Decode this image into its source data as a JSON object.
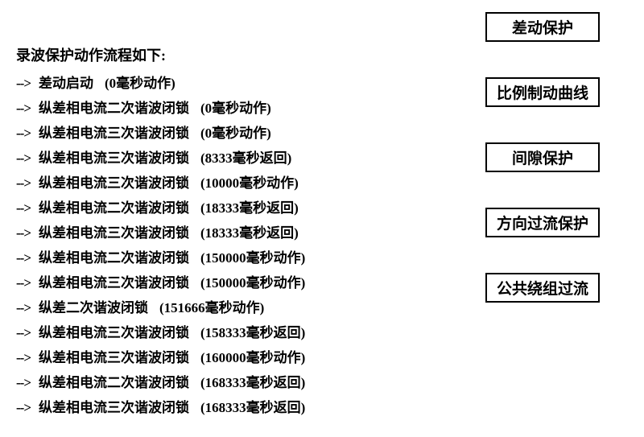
{
  "title": "录波保护动作流程如下:",
  "events": [
    {
      "name": "差动启动",
      "time": "(0毫秒动作)"
    },
    {
      "name": "纵差相电流二次谐波闭锁",
      "time": "(0毫秒动作)"
    },
    {
      "name": "纵差相电流三次谐波闭锁",
      "time": "(0毫秒动作)"
    },
    {
      "name": "纵差相电流三次谐波闭锁",
      "time": "(8333毫秒返回)"
    },
    {
      "name": "纵差相电流三次谐波闭锁",
      "time": "(10000毫秒动作)"
    },
    {
      "name": "纵差相电流二次谐波闭锁",
      "time": "(18333毫秒返回)"
    },
    {
      "name": "纵差相电流三次谐波闭锁",
      "time": "(18333毫秒返回)"
    },
    {
      "name": "纵差相电流二次谐波闭锁",
      "time": "(150000毫秒动作)"
    },
    {
      "name": "纵差相电流三次谐波闭锁",
      "time": "(150000毫秒动作)"
    },
    {
      "name": "纵差二次谐波闭锁",
      "time": "(151666毫秒动作)"
    },
    {
      "name": "纵差相电流三次谐波闭锁",
      "time": "(158333毫秒返回)"
    },
    {
      "name": "纵差相电流三次谐波闭锁",
      "time": "(160000毫秒动作)"
    },
    {
      "name": "纵差相电流二次谐波闭锁",
      "time": "(168333毫秒返回)"
    },
    {
      "name": "纵差相电流三次谐波闭锁",
      "time": "(168333毫秒返回)"
    }
  ],
  "arrow": "-->",
  "buttons": [
    "差动保护",
    "比例制动曲线",
    "间隙保护",
    "方向过流保护",
    "公共绕组过流"
  ]
}
